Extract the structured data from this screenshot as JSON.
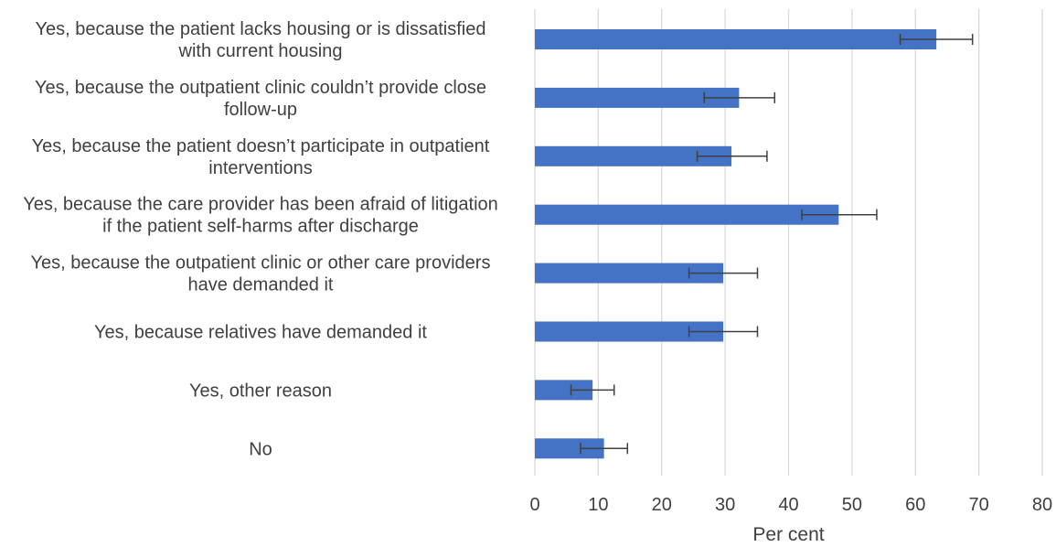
{
  "chart_data": {
    "type": "bar",
    "orientation": "horizontal",
    "categories": [
      [
        "Yes, because the patient lacks housing or is dissatisfied",
        "with current housing"
      ],
      [
        "Yes, because the outpatient clinic couldn’t provide close",
        "follow-up"
      ],
      [
        "Yes, because the patient doesn’t participate in outpatient",
        "interventions"
      ],
      [
        "Yes, because the care provider has been afraid of litigation",
        "if the patient self-harms after discharge"
      ],
      [
        "Yes, because the outpatient clinic or other care providers",
        "have demanded it"
      ],
      [
        "Yes, because relatives have demanded it"
      ],
      [
        "Yes, other reason"
      ],
      [
        "No"
      ]
    ],
    "values": [
      63.3,
      32.2,
      31.0,
      47.9,
      29.7,
      29.7,
      9.1,
      10.9
    ],
    "error_low": [
      57.6,
      26.7,
      25.6,
      42.1,
      24.3,
      24.3,
      5.7,
      7.2
    ],
    "error_high": [
      69.0,
      37.8,
      36.6,
      53.9,
      35.1,
      35.1,
      12.5,
      14.6
    ],
    "xlabel": "Per cent",
    "xlim": [
      0,
      80
    ],
    "xticks": [
      0,
      10,
      20,
      30,
      40,
      50,
      60,
      70,
      80
    ],
    "grid": "vertical",
    "colors": {
      "bar": "#4472c4",
      "grid": "#d9d9d9",
      "error": "#404040",
      "text": "#404040"
    }
  }
}
